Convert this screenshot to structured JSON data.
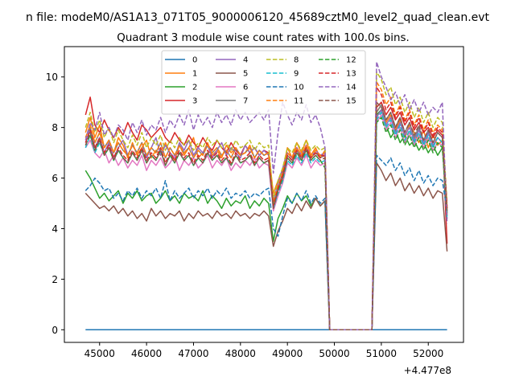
{
  "figure": {
    "suptitle": "n file: modeM0/AS1A13_071T05_9000006120_45689cztM0_level2_quad_clean.evt"
  },
  "chart_data": {
    "type": "line",
    "title": "Quadrant 3 module wise count rates with 100.0s bins.",
    "xlabel": "",
    "ylabel": "",
    "x_offset_label": "+4.477e8",
    "xlim": [
      44250,
      52750
    ],
    "ylim": [
      -0.5,
      11.2
    ],
    "xticks": [
      45000,
      46000,
      47000,
      48000,
      49000,
      50000,
      51000,
      52000
    ],
    "yticks": [
      0,
      2,
      4,
      6,
      8,
      10
    ],
    "legend": {
      "location": "top-center",
      "columns": 4
    },
    "x_start": 44700,
    "x_step": 100,
    "gap": {
      "from": 49900,
      "to": 50800
    },
    "series": [
      {
        "name": "0",
        "color": "#1f77b4",
        "dash": "solid",
        "pre": [
          0,
          0,
          0,
          0,
          0,
          0,
          0,
          0,
          0,
          0,
          0,
          0,
          0,
          0,
          0,
          0,
          0,
          0,
          0,
          0,
          0,
          0,
          0,
          0,
          0,
          0,
          0,
          0,
          0,
          0,
          0,
          0,
          0,
          0,
          0,
          0,
          0,
          0,
          0,
          0,
          0,
          0,
          0,
          0,
          0,
          0,
          0,
          0,
          0,
          0,
          0,
          0
        ],
        "post": [
          0,
          0,
          0,
          0,
          0,
          0,
          0,
          0,
          0,
          0,
          0,
          0,
          0,
          0,
          0,
          0
        ]
      },
      {
        "name": "1",
        "color": "#ff7f0e",
        "dash": "solid",
        "pre": [
          7.8,
          8.4,
          7.6,
          8.1,
          7.2,
          7.5,
          7.0,
          7.6,
          7.3,
          6.8,
          7.4,
          6.9,
          7.2,
          7.5,
          6.8,
          7.1,
          6.9,
          7.4,
          7.0,
          6.7,
          7.3,
          6.9,
          7.2,
          7.6,
          6.8,
          7.0,
          7.4,
          6.9,
          7.1,
          6.8,
          7.3,
          7.0,
          7.2,
          6.9,
          7.0,
          7.3,
          6.8,
          7.1,
          6.9,
          7.0,
          5.4,
          5.9,
          6.3,
          7.2,
          6.8,
          7.4,
          7.0,
          7.5,
          6.9,
          7.2,
          6.8,
          7.1
        ],
        "post": [
          8.6,
          8.9,
          8.2,
          8.5,
          7.9,
          8.3,
          7.6,
          8.1,
          7.8,
          7.4,
          7.9,
          7.2,
          7.7,
          7.3,
          7.5,
          4.8
        ]
      },
      {
        "name": "2",
        "color": "#2ca02c",
        "dash": "solid",
        "pre": [
          6.3,
          6.0,
          5.6,
          5.2,
          5.4,
          5.1,
          5.3,
          5.5,
          5.0,
          5.4,
          5.2,
          5.5,
          5.1,
          5.3,
          5.4,
          5.0,
          5.2,
          5.5,
          5.1,
          5.3,
          5.0,
          5.4,
          5.2,
          5.3,
          5.1,
          5.5,
          5.0,
          5.3,
          5.1,
          4.8,
          5.2,
          4.9,
          5.1,
          5.0,
          5.3,
          4.8,
          5.1,
          4.9,
          5.2,
          5.0,
          3.5,
          4.4,
          4.8,
          5.3,
          5.0,
          5.4,
          5.1,
          5.3,
          4.9,
          5.2,
          4.9,
          5.1
        ],
        "post": [
          8.5,
          8.7,
          8.1,
          7.6,
          7.9,
          7.4,
          7.7,
          7.3,
          7.5,
          7.1,
          7.4,
          7.0,
          7.3,
          6.9,
          7.2,
          4.6
        ]
      },
      {
        "name": "3",
        "color": "#d62728",
        "dash": "solid",
        "pre": [
          8.5,
          9.2,
          8.1,
          7.8,
          8.3,
          7.9,
          7.6,
          8.0,
          7.7,
          8.2,
          7.8,
          7.5,
          8.1,
          7.9,
          7.6,
          7.8,
          8.0,
          7.6,
          7.4,
          7.8,
          7.5,
          7.3,
          7.7,
          7.4,
          7.2,
          7.6,
          7.3,
          7.1,
          7.5,
          7.2,
          7.0,
          7.4,
          7.1,
          6.9,
          7.3,
          7.0,
          7.2,
          6.9,
          7.1,
          7.0,
          4.8,
          5.6,
          6.2,
          7.0,
          6.8,
          7.2,
          6.9,
          7.1,
          6.8,
          7.0,
          6.9,
          6.9
        ],
        "post": [
          8.8,
          9.0,
          8.5,
          8.8,
          8.3,
          8.6,
          8.1,
          8.4,
          7.9,
          8.2,
          7.8,
          8.0,
          7.6,
          7.9,
          7.7,
          3.4
        ]
      },
      {
        "name": "4",
        "color": "#9467bd",
        "dash": "solid",
        "pre": [
          7.4,
          7.9,
          7.2,
          7.6,
          7.0,
          7.4,
          6.8,
          7.2,
          7.5,
          6.9,
          7.3,
          7.0,
          7.4,
          6.8,
          7.2,
          7.6,
          6.9,
          7.3,
          7.0,
          6.8,
          7.4,
          7.1,
          7.5,
          6.9,
          7.2,
          7.0,
          7.3,
          6.8,
          7.1,
          7.4,
          6.9,
          7.2,
          7.0,
          6.8,
          7.3,
          7.0,
          7.2,
          6.9,
          7.1,
          6.9,
          5.1,
          5.8,
          6.4,
          7.0,
          6.8,
          7.2,
          6.9,
          7.3,
          6.8,
          7.1,
          6.9,
          7.0
        ],
        "post": [
          8.4,
          8.7,
          8.1,
          8.4,
          7.8,
          8.2,
          7.7,
          8.0,
          7.5,
          7.9,
          7.4,
          7.8,
          7.3,
          7.6,
          7.4,
          4.4
        ]
      },
      {
        "name": "5",
        "color": "#8c564b",
        "dash": "solid",
        "pre": [
          5.4,
          5.2,
          5.0,
          4.8,
          4.9,
          4.7,
          4.9,
          4.6,
          4.8,
          4.5,
          4.7,
          4.4,
          4.6,
          4.3,
          4.8,
          4.5,
          4.7,
          4.4,
          4.6,
          4.5,
          4.7,
          4.3,
          4.6,
          4.4,
          4.7,
          4.5,
          4.6,
          4.4,
          4.7,
          4.5,
          4.6,
          4.4,
          4.7,
          4.5,
          4.6,
          4.4,
          4.6,
          4.5,
          4.7,
          4.5,
          3.3,
          3.9,
          4.3,
          4.8,
          4.6,
          5.0,
          4.7,
          5.1,
          4.8,
          5.2,
          4.9,
          5.1
        ],
        "post": [
          6.6,
          6.3,
          5.9,
          6.2,
          5.7,
          6.0,
          5.5,
          5.8,
          5.4,
          5.7,
          5.3,
          5.6,
          5.2,
          5.5,
          5.4,
          3.1
        ]
      },
      {
        "name": "6",
        "color": "#e377c2",
        "dash": "solid",
        "pre": [
          7.2,
          7.5,
          7.0,
          6.8,
          7.1,
          6.6,
          6.9,
          6.5,
          6.8,
          6.4,
          6.7,
          6.5,
          6.9,
          6.3,
          6.7,
          6.5,
          6.8,
          6.4,
          6.6,
          6.9,
          6.3,
          6.7,
          6.5,
          6.8,
          6.4,
          6.6,
          6.9,
          6.4,
          6.7,
          6.5,
          6.8,
          6.3,
          6.6,
          6.4,
          6.7,
          6.5,
          6.8,
          6.4,
          6.6,
          6.5,
          4.7,
          5.3,
          5.8,
          6.6,
          6.4,
          6.8,
          6.5,
          6.9,
          6.4,
          6.7,
          6.5,
          6.6
        ],
        "post": [
          8.2,
          8.5,
          7.9,
          8.2,
          7.6,
          8.0,
          7.4,
          7.8,
          7.3,
          7.7,
          7.2,
          7.6,
          7.1,
          7.4,
          7.3,
          4.5
        ]
      },
      {
        "name": "7",
        "color": "#7f7f7f",
        "dash": "solid",
        "pre": [
          7.6,
          8.0,
          7.4,
          7.8,
          7.2,
          7.5,
          7.0,
          7.4,
          7.1,
          6.9,
          7.3,
          7.0,
          7.4,
          6.9,
          7.2,
          7.0,
          7.4,
          6.8,
          7.2,
          6.9,
          7.3,
          7.0,
          7.2,
          6.8,
          7.1,
          6.9,
          7.3,
          7.0,
          7.2,
          6.9,
          7.1,
          6.8,
          7.2,
          6.9,
          7.0,
          7.2,
          6.8,
          7.1,
          6.9,
          7.0,
          4.9,
          5.6,
          6.1,
          6.9,
          6.7,
          7.1,
          6.8,
          7.2,
          6.8,
          7.0,
          6.8,
          6.9
        ],
        "post": [
          8.6,
          8.9,
          8.3,
          8.6,
          8.0,
          8.4,
          7.8,
          8.2,
          7.6,
          8.0,
          7.5,
          7.9,
          7.4,
          7.8,
          7.6,
          4.5
        ]
      },
      {
        "name": "8",
        "color": "#bcbd22",
        "dash": "dashed",
        "pre": [
          8.0,
          8.6,
          7.8,
          8.3,
          7.6,
          8.0,
          7.4,
          7.9,
          7.5,
          7.2,
          7.7,
          7.3,
          7.8,
          7.2,
          7.6,
          7.3,
          7.7,
          7.1,
          7.5,
          7.2,
          7.6,
          7.3,
          7.5,
          7.1,
          7.4,
          7.2,
          7.6,
          7.3,
          7.5,
          7.2,
          7.4,
          7.1,
          7.5,
          7.2,
          7.3,
          7.5,
          7.1,
          7.4,
          7.2,
          7.3,
          5.2,
          5.9,
          6.4,
          7.2,
          7.0,
          7.4,
          7.1,
          7.5,
          7.1,
          7.3,
          7.1,
          7.2
        ],
        "post": [
          10.2,
          9.9,
          9.3,
          9.6,
          8.9,
          9.2,
          8.6,
          9.0,
          8.4,
          8.8,
          8.2,
          8.6,
          8.0,
          8.4,
          8.2,
          5.0
        ]
      },
      {
        "name": "9",
        "color": "#17becf",
        "dash": "dashed",
        "pre": [
          7.2,
          7.7,
          7.0,
          7.4,
          6.9,
          7.2,
          6.7,
          7.1,
          6.8,
          6.6,
          7.0,
          6.7,
          7.1,
          6.6,
          6.9,
          6.7,
          7.1,
          6.5,
          6.9,
          6.6,
          7.0,
          6.7,
          6.9,
          6.5,
          6.8,
          6.6,
          7.0,
          6.7,
          6.9,
          6.6,
          6.8,
          6.5,
          6.9,
          6.6,
          6.7,
          6.9,
          6.5,
          6.8,
          6.6,
          6.7,
          4.8,
          5.4,
          5.9,
          6.7,
          6.5,
          6.9,
          6.6,
          7.0,
          6.6,
          6.8,
          6.6,
          6.7
        ],
        "post": [
          8.3,
          8.6,
          8.0,
          8.3,
          7.7,
          8.1,
          7.5,
          7.9,
          7.4,
          7.8,
          7.3,
          7.7,
          7.2,
          7.6,
          7.4,
          4.3
        ]
      },
      {
        "name": "10",
        "color": "#1f77b4",
        "dash": "dashed",
        "pre": [
          5.5,
          5.7,
          6.0,
          5.8,
          5.5,
          5.6,
          5.2,
          5.4,
          5.1,
          5.5,
          5.3,
          5.6,
          5.2,
          5.5,
          5.3,
          5.6,
          5.2,
          5.9,
          5.1,
          5.5,
          5.2,
          5.4,
          5.6,
          5.2,
          5.5,
          5.3,
          5.6,
          5.2,
          5.5,
          5.3,
          5.6,
          5.2,
          5.4,
          5.3,
          5.5,
          5.2,
          5.4,
          5.3,
          5.5,
          5.6,
          4.0,
          3.7,
          4.5,
          5.2,
          5.0,
          5.4,
          5.1,
          5.5,
          5.0,
          5.3,
          5.0,
          5.2
        ],
        "post": [
          6.9,
          6.7,
          6.5,
          6.8,
          6.3,
          6.6,
          6.1,
          6.4,
          5.9,
          6.3,
          5.8,
          6.1,
          5.7,
          6.0,
          5.9,
          4.7
        ]
      },
      {
        "name": "11",
        "color": "#ff7f0e",
        "dash": "dashed",
        "pre": [
          7.6,
          8.1,
          7.4,
          7.8,
          7.2,
          7.5,
          7.0,
          7.4,
          7.1,
          6.9,
          7.3,
          7.0,
          7.4,
          6.9,
          7.2,
          7.0,
          7.4,
          6.8,
          7.2,
          6.9,
          7.3,
          7.0,
          7.2,
          6.8,
          7.1,
          6.9,
          7.3,
          7.0,
          7.2,
          6.9,
          7.1,
          6.8,
          7.2,
          6.9,
          7.0,
          7.2,
          6.8,
          7.1,
          6.9,
          7.0,
          5.0,
          5.7,
          6.2,
          7.0,
          6.8,
          7.2,
          6.9,
          7.3,
          6.8,
          7.1,
          6.9,
          7.0
        ],
        "post": [
          9.8,
          9.5,
          8.9,
          9.2,
          8.5,
          8.9,
          8.3,
          8.7,
          8.1,
          8.5,
          7.9,
          8.3,
          7.8,
          8.1,
          7.9,
          4.9
        ]
      },
      {
        "name": "12",
        "color": "#2ca02c",
        "dash": "dashed",
        "pre": [
          7.3,
          7.7,
          7.1,
          7.5,
          6.9,
          7.2,
          6.7,
          7.1,
          6.8,
          6.6,
          7.0,
          6.7,
          7.1,
          6.6,
          6.9,
          6.7,
          7.1,
          6.5,
          6.9,
          6.6,
          7.0,
          6.7,
          6.9,
          6.5,
          6.8,
          6.6,
          7.0,
          6.7,
          6.9,
          6.6,
          6.8,
          6.5,
          6.9,
          6.6,
          6.7,
          6.9,
          6.5,
          6.8,
          6.6,
          6.7,
          4.9,
          5.5,
          6.0,
          6.8,
          6.6,
          7.0,
          6.7,
          7.1,
          6.7,
          6.9,
          6.7,
          6.4
        ],
        "post": [
          8.2,
          8.4,
          7.8,
          8.1,
          7.5,
          7.9,
          7.3,
          7.7,
          7.2,
          7.6,
          7.1,
          7.5,
          7.0,
          7.4,
          7.2,
          4.6
        ]
      },
      {
        "name": "13",
        "color": "#d62728",
        "dash": "dashed",
        "pre": [
          7.4,
          7.9,
          7.2,
          7.6,
          7.0,
          7.3,
          6.8,
          7.2,
          6.9,
          6.7,
          7.1,
          6.8,
          7.2,
          6.7,
          7.0,
          6.8,
          7.2,
          6.6,
          7.0,
          6.7,
          7.1,
          6.8,
          7.0,
          6.6,
          6.9,
          6.7,
          7.1,
          6.8,
          7.0,
          6.7,
          6.9,
          6.6,
          7.0,
          6.7,
          6.8,
          7.0,
          6.6,
          6.9,
          6.7,
          6.8,
          4.9,
          5.6,
          6.1,
          6.9,
          6.7,
          7.1,
          6.8,
          7.2,
          6.8,
          7.0,
          6.8,
          6.9
        ],
        "post": [
          9.6,
          9.3,
          8.7,
          9.0,
          8.4,
          8.8,
          8.2,
          8.6,
          8.0,
          8.4,
          7.8,
          8.2,
          7.7,
          8.0,
          7.8,
          4.8
        ]
      },
      {
        "name": "14",
        "color": "#9467bd",
        "dash": "dashed",
        "pre": [
          7.5,
          8.2,
          7.9,
          8.6,
          7.7,
          8.0,
          7.6,
          8.1,
          7.9,
          7.5,
          8.2,
          7.8,
          8.3,
          7.7,
          8.1,
          7.9,
          8.4,
          7.8,
          8.3,
          8.0,
          8.5,
          8.1,
          8.7,
          7.9,
          8.5,
          8.1,
          8.4,
          8.0,
          8.6,
          8.2,
          8.5,
          8.1,
          8.7,
          8.3,
          8.6,
          8.2,
          8.4,
          8.6,
          8.3,
          8.7,
          6.2,
          7.8,
          9.0,
          8.5,
          8.1,
          8.6,
          8.3,
          8.9,
          8.2,
          8.5,
          8.0,
          7.2
        ],
        "post": [
          10.6,
          10.0,
          9.6,
          9.1,
          9.4,
          8.9,
          9.3,
          8.7,
          9.1,
          8.6,
          9.0,
          8.5,
          8.8,
          8.6,
          9.0,
          4.2
        ]
      },
      {
        "name": "15",
        "color": "#8c564b",
        "dash": "dashed",
        "pre": [
          7.3,
          7.8,
          7.1,
          7.5,
          6.9,
          7.2,
          6.7,
          7.1,
          6.8,
          6.6,
          7.0,
          6.7,
          7.1,
          6.6,
          6.9,
          6.7,
          7.1,
          6.5,
          6.9,
          6.6,
          7.0,
          6.7,
          6.9,
          6.5,
          6.8,
          6.6,
          7.0,
          6.7,
          6.9,
          6.6,
          6.8,
          6.5,
          6.9,
          6.6,
          6.7,
          6.9,
          6.5,
          6.8,
          6.6,
          6.7,
          4.8,
          5.5,
          6.0,
          6.8,
          6.6,
          7.0,
          6.7,
          7.1,
          6.7,
          6.9,
          6.7,
          6.8
        ],
        "post": [
          9.0,
          8.8,
          8.3,
          8.6,
          8.0,
          8.4,
          7.8,
          8.2,
          7.7,
          8.1,
          7.5,
          7.9,
          7.4,
          7.8,
          7.6,
          4.7
        ]
      }
    ]
  }
}
